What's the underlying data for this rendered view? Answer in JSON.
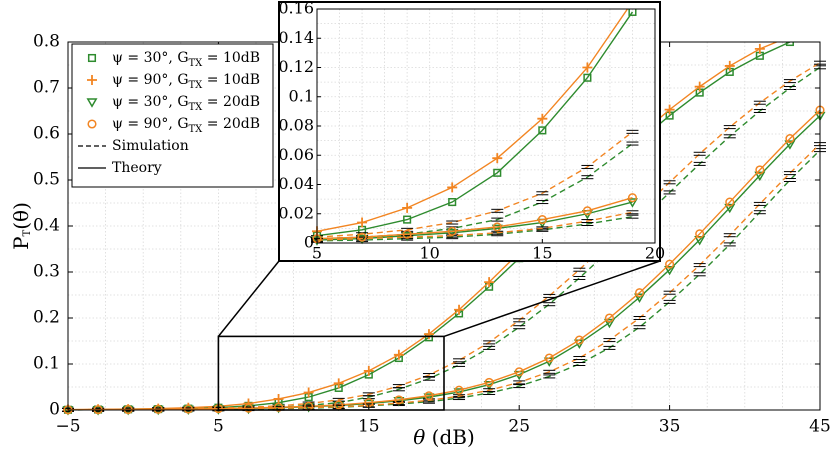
{
  "colors": {
    "green": "#2e8b2e",
    "orange": "#f28522"
  },
  "chart_data": {
    "type": "line",
    "xlabel": "θ (dB)",
    "ylabel": "P_T(θ)",
    "xlim": [
      -5,
      45
    ],
    "ylim": [
      0,
      0.8
    ],
    "xticks": [
      "−5",
      "5",
      "15",
      "25",
      "35",
      "45"
    ],
    "yticks": [
      "0",
      "0.1",
      "0.2",
      "0.3",
      "0.4",
      "0.5",
      "0.6",
      "0.7",
      "0.8"
    ],
    "grid": true,
    "legend_position": "top-left",
    "x": [
      -5,
      -3,
      -1,
      1,
      3,
      5,
      7,
      9,
      11,
      13,
      15,
      17,
      19,
      21,
      23,
      25,
      27,
      29,
      31,
      33,
      35,
      37,
      39,
      41,
      43,
      45
    ],
    "series": [
      {
        "name": "ψ = 30°, G_TX = 10dB",
        "color": "green",
        "marker": "square",
        "theory": [
          0.0005,
          0.001,
          0.0015,
          0.002,
          0.003,
          0.005,
          0.009,
          0.016,
          0.028,
          0.048,
          0.077,
          0.113,
          0.158,
          0.21,
          0.268,
          0.33,
          0.395,
          0.46,
          0.525,
          0.585,
          0.64,
          0.69,
          0.735,
          0.77,
          0.8,
          0.82
        ],
        "simulation": [
          0.0004,
          0.0008,
          0.0012,
          0.0016,
          0.002,
          0.003,
          0.004,
          0.006,
          0.01,
          0.016,
          0.028,
          0.045,
          0.068,
          0.098,
          0.135,
          0.18,
          0.23,
          0.287,
          0.347,
          0.41,
          0.473,
          0.535,
          0.595,
          0.65,
          0.7,
          0.745
        ]
      },
      {
        "name": "ψ = 90°, G_TX = 10dB",
        "color": "orange",
        "marker": "plus",
        "theory": [
          0.001,
          0.0015,
          0.002,
          0.003,
          0.005,
          0.008,
          0.014,
          0.024,
          0.038,
          0.058,
          0.085,
          0.12,
          0.165,
          0.218,
          0.278,
          0.342,
          0.408,
          0.473,
          0.537,
          0.597,
          0.653,
          0.703,
          0.748,
          0.785,
          0.812,
          0.83
        ],
        "simulation": [
          0.0005,
          0.001,
          0.0015,
          0.002,
          0.003,
          0.004,
          0.006,
          0.009,
          0.014,
          0.022,
          0.034,
          0.052,
          0.076,
          0.108,
          0.147,
          0.195,
          0.248,
          0.305,
          0.368,
          0.432,
          0.495,
          0.557,
          0.615,
          0.668,
          0.715,
          0.755
        ]
      },
      {
        "name": "ψ = 30°, G_TX = 20dB",
        "color": "green",
        "marker": "triangle",
        "theory": [
          0.0003,
          0.0005,
          0.0008,
          0.001,
          0.0015,
          0.002,
          0.003,
          0.005,
          0.007,
          0.01,
          0.014,
          0.02,
          0.028,
          0.039,
          0.055,
          0.077,
          0.106,
          0.145,
          0.19,
          0.245,
          0.305,
          0.37,
          0.44,
          0.51,
          0.578,
          0.64
        ],
        "simulation": [
          0.0002,
          0.0004,
          0.0006,
          0.0008,
          0.001,
          0.0015,
          0.002,
          0.003,
          0.004,
          0.006,
          0.009,
          0.013,
          0.018,
          0.026,
          0.037,
          0.052,
          0.073,
          0.1,
          0.135,
          0.18,
          0.235,
          0.295,
          0.36,
          0.43,
          0.5,
          0.565
        ]
      },
      {
        "name": "ψ = 90°, G_TX = 20dB",
        "color": "orange",
        "marker": "circle",
        "theory": [
          0.0005,
          0.0008,
          0.001,
          0.0015,
          0.002,
          0.003,
          0.004,
          0.006,
          0.008,
          0.011,
          0.016,
          0.022,
          0.031,
          0.043,
          0.06,
          0.083,
          0.113,
          0.152,
          0.2,
          0.255,
          0.317,
          0.383,
          0.452,
          0.522,
          0.59,
          0.652
        ],
        "simulation": [
          0.0003,
          0.0005,
          0.0008,
          0.001,
          0.0015,
          0.002,
          0.003,
          0.004,
          0.005,
          0.007,
          0.01,
          0.015,
          0.021,
          0.03,
          0.043,
          0.06,
          0.083,
          0.113,
          0.152,
          0.2,
          0.255,
          0.315,
          0.38,
          0.448,
          0.515,
          0.578
        ]
      }
    ],
    "legend_extra": [
      {
        "label": "Simulation",
        "style": "dashed"
      },
      {
        "label": "Theory",
        "style": "solid"
      }
    ],
    "inset": {
      "xlim": [
        5,
        20
      ],
      "ylim": [
        0,
        0.16
      ],
      "xticks": [
        "5",
        "10",
        "15",
        "20"
      ],
      "yticks": [
        "0",
        "0.02",
        "0.04",
        "0.06",
        "0.08",
        "0.1",
        "0.12",
        "0.14",
        "0.16"
      ]
    }
  }
}
